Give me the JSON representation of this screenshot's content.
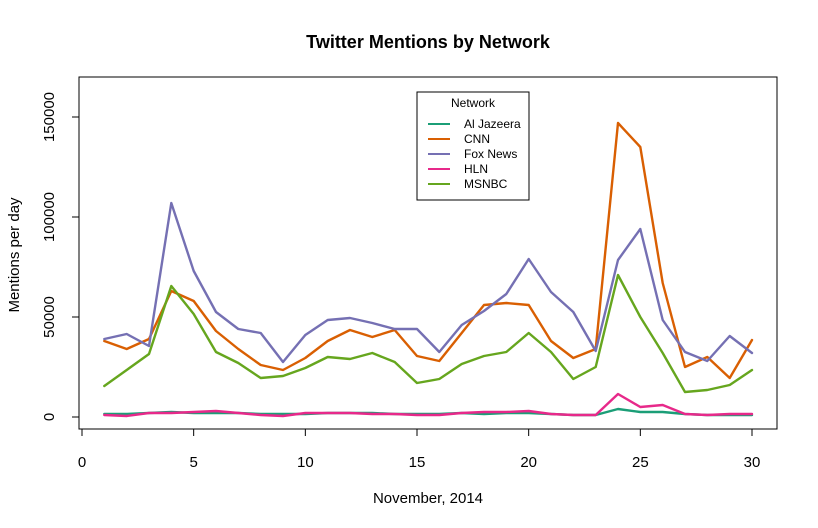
{
  "chart_data": {
    "type": "line",
    "title": "Twitter Mentions by Network",
    "xlabel": "November, 2014",
    "ylabel": "Mentions per day",
    "xlim": [
      0,
      30
    ],
    "ylim": [
      0,
      165000
    ],
    "xticks": [
      0,
      5,
      10,
      15,
      20,
      25,
      30
    ],
    "yticks": [
      0,
      50000,
      100000,
      150000
    ],
    "grid": false,
    "legend": {
      "title": "Network",
      "position": "top-center"
    },
    "x": [
      1,
      2,
      3,
      4,
      5,
      6,
      7,
      8,
      9,
      10,
      11,
      12,
      13,
      14,
      15,
      16,
      17,
      18,
      19,
      20,
      21,
      22,
      23,
      24,
      25,
      26,
      27,
      28,
      29,
      30
    ],
    "series": [
      {
        "name": "Al Jazeera",
        "color": "#1b9e77",
        "values": [
          1500,
          1500,
          2000,
          2500,
          2000,
          2000,
          2000,
          1500,
          1500,
          1500,
          2000,
          2000,
          2000,
          1500,
          1500,
          1500,
          2000,
          1500,
          2000,
          2000,
          1500,
          1000,
          1000,
          4000,
          2500,
          2500,
          1500,
          1000,
          1000,
          1000
        ]
      },
      {
        "name": "CNN",
        "color": "#d95f02",
        "values": [
          38000,
          34000,
          39000,
          63000,
          58000,
          43000,
          34000,
          26000,
          23500,
          29500,
          38000,
          43500,
          40000,
          43500,
          30500,
          28000,
          42000,
          56000,
          57000,
          56000,
          38000,
          29500,
          34000,
          147000,
          135000,
          67000,
          25000,
          30000,
          19500,
          38500
        ]
      },
      {
        "name": "Fox News",
        "color": "#7570b3",
        "values": [
          39000,
          41500,
          35500,
          107000,
          73000,
          52500,
          44000,
          42000,
          27500,
          41000,
          48500,
          49500,
          47000,
          44000,
          44000,
          32500,
          46000,
          53000,
          61500,
          79000,
          62500,
          52500,
          33000,
          78500,
          94000,
          48500,
          32500,
          28000,
          40500,
          32000
        ]
      },
      {
        "name": "HLN",
        "color": "#e7298a",
        "values": [
          1000,
          500,
          2000,
          2000,
          2500,
          3000,
          2000,
          1000,
          500,
          2000,
          2000,
          2000,
          1500,
          1500,
          1000,
          1000,
          2000,
          2500,
          2500,
          3000,
          1500,
          1000,
          1000,
          11500,
          5000,
          6000,
          1500,
          1000,
          1500,
          1500
        ]
      },
      {
        "name": "MSNBC",
        "color": "#66a61e",
        "values": [
          15500,
          23500,
          31500,
          65500,
          51500,
          32500,
          27000,
          19500,
          20500,
          24500,
          30000,
          29000,
          32000,
          27500,
          17000,
          19000,
          26500,
          30500,
          32500,
          42000,
          32500,
          19000,
          25000,
          71000,
          50000,
          32000,
          12500,
          13500,
          16000,
          23500
        ]
      }
    ]
  }
}
